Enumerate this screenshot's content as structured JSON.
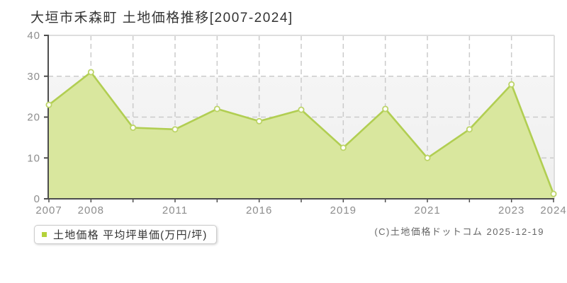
{
  "title": "大垣市禾森町 土地価格推移[2007-2024]",
  "legend": {
    "label": "土地価格 平均坪単価(万円/坪)",
    "swatch_color": "#b4d23a"
  },
  "copyright": "(C)土地価格ドットコム 2025-12-19",
  "chart_data": {
    "type": "area",
    "title": "大垣市禾森町 土地価格推移[2007-2024]",
    "x_tick_labels": [
      "2007",
      "2008",
      "",
      "2011",
      "",
      "2016",
      "",
      "2019",
      "",
      "2021",
      "",
      "2023",
      "2024"
    ],
    "series": [
      {
        "name": "土地価格 平均坪単価(万円/坪)",
        "values": [
          23,
          31,
          17.4,
          17,
          22,
          19,
          21.8,
          12.5,
          22,
          10,
          17,
          28,
          1.2
        ]
      }
    ],
    "ylabel": "",
    "xlabel": "",
    "ylim": [
      0,
      40
    ],
    "y_ticks": [
      0,
      10,
      20,
      30,
      40
    ],
    "grid": true,
    "grid_style": "dashed",
    "legend_position": "bottom-left",
    "colors": {
      "line": "#b1ce52",
      "fill": "#d9e79e",
      "marker_fill": "#fffefa",
      "marker_stroke": "#bcd468",
      "gridline": "#cbcbcb",
      "axis": "#4d4d4d",
      "plot_border": "#dedede",
      "tick_label": "#8d8d8d"
    }
  }
}
